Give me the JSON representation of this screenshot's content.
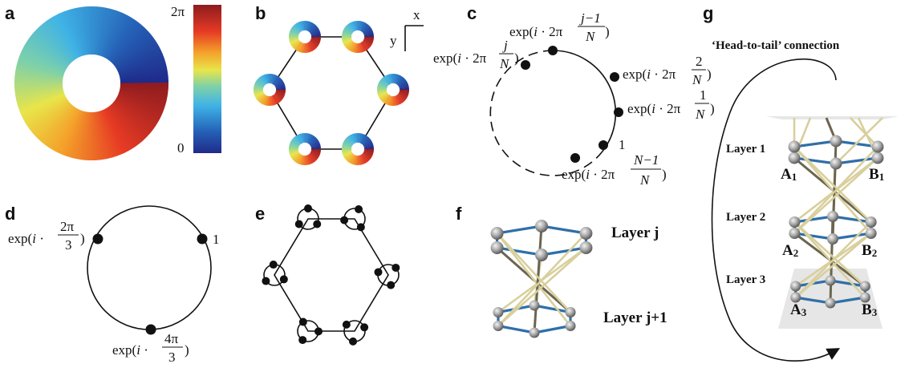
{
  "panels": {
    "a": {
      "label": "a",
      "cbar_top": "2π",
      "cbar_bottom": "0"
    },
    "b": {
      "label": "b",
      "axis_x": "x",
      "axis_y": "y"
    },
    "c": {
      "label": "c",
      "one": "1",
      "n_top": "j−1",
      "n_top_den": "N",
      "n_left": "j",
      "n_left_den": "N",
      "n_r2": "2",
      "n_r2_den": "N",
      "n_r1": "1",
      "n_r1_den": "N",
      "n_bot": "N−1",
      "n_bot_den": "N"
    },
    "d": {
      "label": "d",
      "one": "1",
      "left_num": "2π",
      "left_den": "3",
      "bot_num": "4π",
      "bot_den": "3"
    },
    "e": {
      "label": "e"
    },
    "f": {
      "label": "f",
      "layer_top": "Layer j",
      "layer_bot": "Layer j+1"
    },
    "g": {
      "label": "g",
      "title": "‘Head-to-tail’ connection",
      "layer1": "Layer 1",
      "layer2": "Layer 2",
      "layer3": "Layer 3",
      "a1": "A",
      "a1s": "1",
      "b1": "B",
      "b1s": "1",
      "a2": "A",
      "a2s": "2",
      "b2": "B",
      "b2s": "2",
      "a3": "A",
      "a3s": "3",
      "b3": "B",
      "b3s": "3"
    }
  },
  "colors": {
    "bond_blue": "#2f6fa8",
    "rod": "#d8cf9c",
    "rod_dark": "#6b6550",
    "plane": "#e6e6e6"
  }
}
